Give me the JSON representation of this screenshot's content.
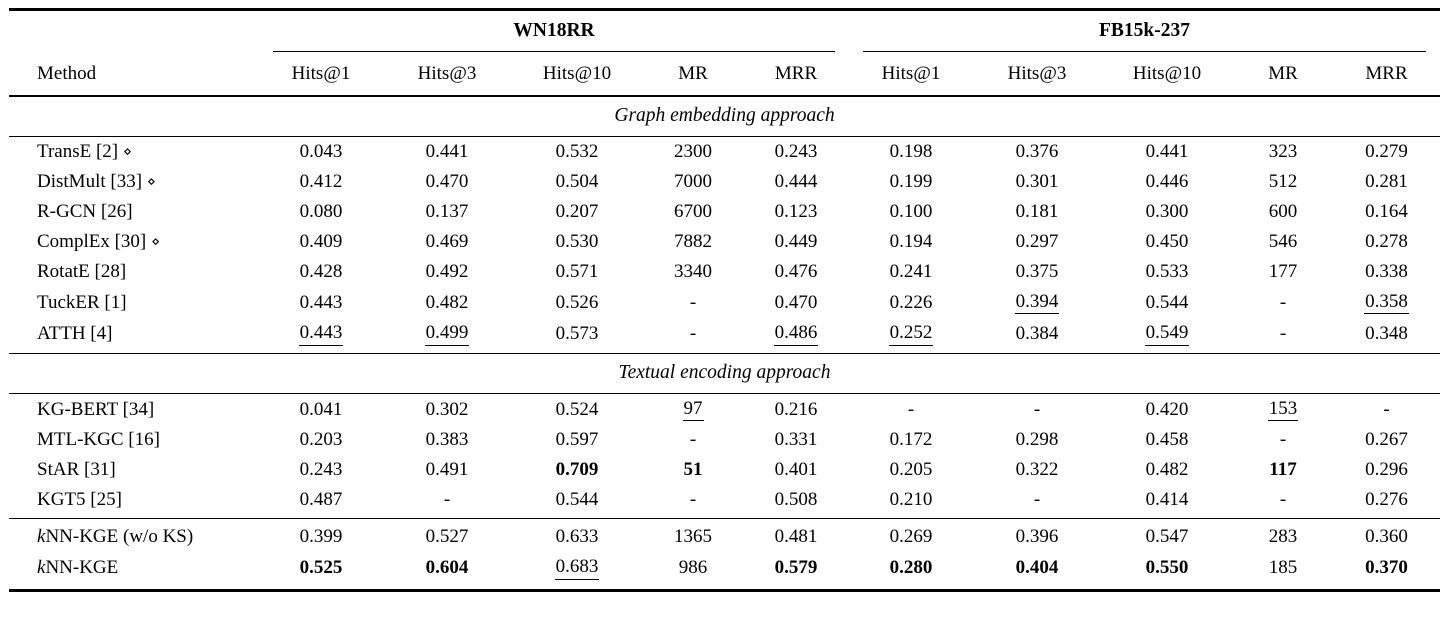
{
  "table": {
    "group_headers": [
      {
        "label": "WN18RR"
      },
      {
        "label": "FB15k-237"
      }
    ],
    "method_header": "Method",
    "metric_headers": [
      "Hits@1",
      "Hits@3",
      "Hits@10",
      "MR",
      "MRR"
    ],
    "diamond_icon": "⋄",
    "colors": {
      "text": "#000000",
      "background": "#ffffff",
      "rule": "#000000"
    },
    "sections": [
      {
        "title": "Graph embedding approach",
        "rows": [
          {
            "method": {
              "label": "TransE [2]",
              "diamond": true
            },
            "cells": [
              "0.043",
              "0.441",
              "0.532",
              "2300",
              "0.243",
              "0.198",
              "0.376",
              "0.441",
              "323",
              "0.279"
            ]
          },
          {
            "method": {
              "label": "DistMult [33]",
              "diamond": true
            },
            "cells": [
              "0.412",
              "0.470",
              "0.504",
              "7000",
              "0.444",
              "0.199",
              "0.301",
              "0.446",
              "512",
              "0.281"
            ]
          },
          {
            "method": {
              "label": "R-GCN [26]"
            },
            "cells": [
              "0.080",
              "0.137",
              "0.207",
              "6700",
              "0.123",
              "0.100",
              "0.181",
              "0.300",
              "600",
              "0.164"
            ]
          },
          {
            "method": {
              "label": "ComplEx [30]",
              "diamond": true
            },
            "cells": [
              "0.409",
              "0.469",
              "0.530",
              "7882",
              "0.449",
              "0.194",
              "0.297",
              "0.450",
              "546",
              "0.278"
            ]
          },
          {
            "method": {
              "label": "RotatE [28]"
            },
            "cells": [
              "0.428",
              "0.492",
              "0.571",
              "3340",
              "0.476",
              "0.241",
              "0.375",
              "0.533",
              "177",
              "0.338"
            ]
          },
          {
            "method": {
              "label": "TuckER [1]"
            },
            "cells": [
              "0.443",
              "0.482",
              "0.526",
              "-",
              "0.470",
              "0.226",
              {
                "v": "0.394",
                "u": true
              },
              "0.544",
              "-",
              {
                "v": "0.358",
                "u": true
              }
            ]
          },
          {
            "method": {
              "label": "ATTH [4]"
            },
            "cells": [
              {
                "v": "0.443",
                "u": true
              },
              {
                "v": "0.499",
                "u": true
              },
              "0.573",
              "-",
              {
                "v": "0.486",
                "u": true
              },
              {
                "v": "0.252",
                "u": true
              },
              "0.384",
              {
                "v": "0.549",
                "u": true
              },
              "-",
              "0.348"
            ]
          }
        ]
      },
      {
        "title": "Textual encoding approach",
        "rows": [
          {
            "method": {
              "label": "KG-BERT [34]"
            },
            "cells": [
              "0.041",
              "0.302",
              "0.524",
              {
                "v": "97",
                "u": true
              },
              "0.216",
              "-",
              "-",
              "0.420",
              {
                "v": "153",
                "u": true
              },
              "-"
            ]
          },
          {
            "method": {
              "label": "MTL-KGC [16]"
            },
            "cells": [
              "0.203",
              "0.383",
              "0.597",
              "-",
              "0.331",
              "0.172",
              "0.298",
              "0.458",
              "-",
              "0.267"
            ]
          },
          {
            "method": {
              "label": "StAR [31]"
            },
            "cells": [
              "0.243",
              "0.491",
              {
                "v": "0.709",
                "b": true
              },
              {
                "v": "51",
                "b": true
              },
              "0.401",
              "0.205",
              "0.322",
              "0.482",
              {
                "v": "117",
                "b": true
              },
              "0.296"
            ]
          },
          {
            "method": {
              "label": "KGT5 [25]"
            },
            "cells": [
              "0.487",
              "-",
              "0.544",
              "-",
              "0.508",
              "0.210",
              "-",
              "0.414",
              "-",
              "0.276"
            ]
          }
        ]
      },
      {
        "title": "",
        "rows": [
          {
            "method": {
              "italic_prefix": "k",
              "label": "NN-KGE (w/o KS)"
            },
            "cells": [
              "0.399",
              "0.527",
              "0.633",
              "1365",
              "0.481",
              "0.269",
              "0.396",
              "0.547",
              "283",
              "0.360"
            ]
          },
          {
            "method": {
              "italic_prefix": "k",
              "label": "NN-KGE"
            },
            "cells": [
              {
                "v": "0.525",
                "b": true
              },
              {
                "v": "0.604",
                "b": true
              },
              {
                "v": "0.683",
                "u": true
              },
              "986",
              {
                "v": "0.579",
                "b": true
              },
              {
                "v": "0.280",
                "b": true
              },
              {
                "v": "0.404",
                "b": true
              },
              {
                "v": "0.550",
                "b": true
              },
              "185",
              {
                "v": "0.370",
                "b": true
              }
            ]
          }
        ]
      }
    ]
  }
}
